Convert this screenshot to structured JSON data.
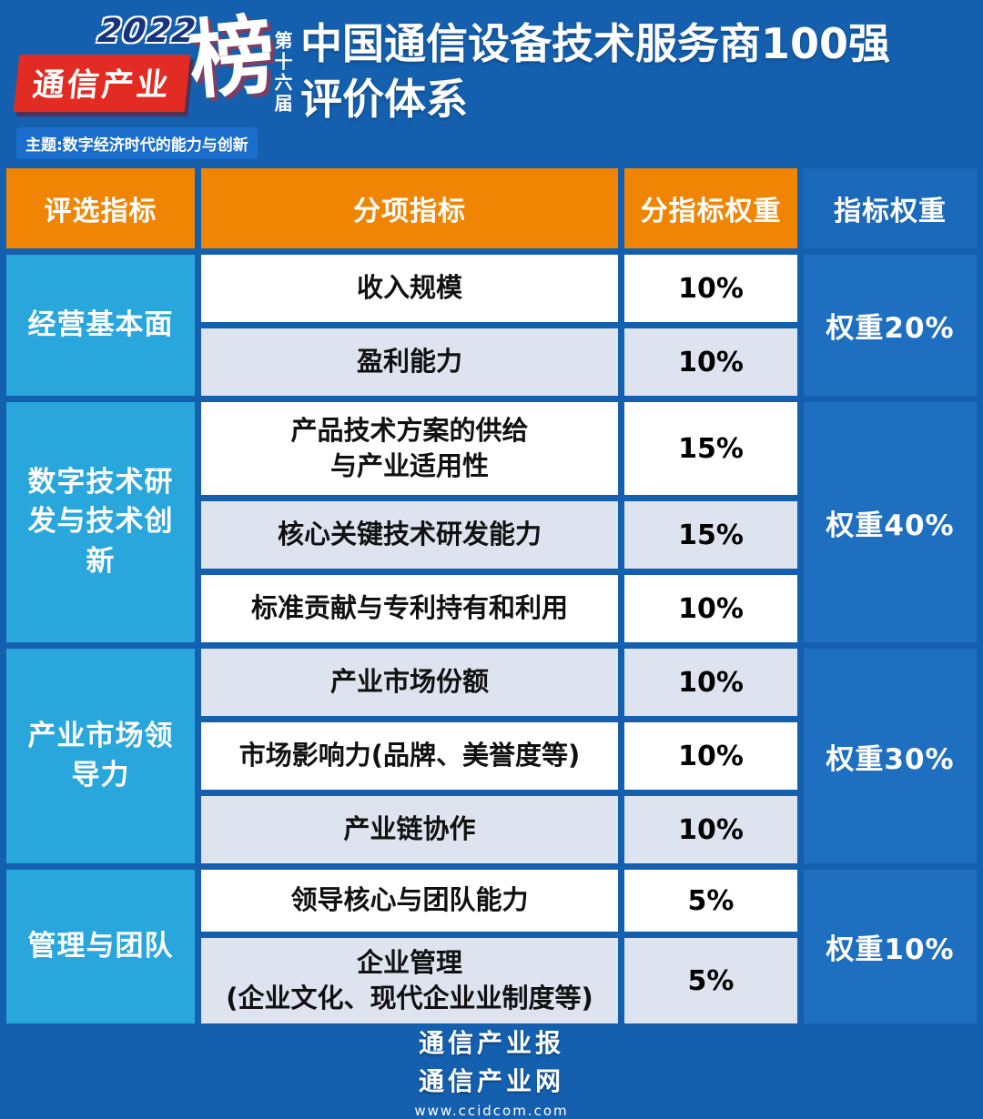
{
  "colors": {
    "page_bg": "#1460af",
    "header_orange": "#ef8502",
    "category_cyan": "#29a7dd",
    "row_alt_lavender": "#dde4f0",
    "weight_cell_blue": "#1e6fc0",
    "logo_red": "#e22b22"
  },
  "header": {
    "logo": {
      "year": "2022",
      "brand": "通信产业",
      "bang": "榜",
      "edition": "第十六届",
      "theme": "主题:数字经济时代的能力与创新"
    },
    "title_line1": "中国通信设备技术服务商100强",
    "title_line2": "评价体系"
  },
  "table": {
    "headers": [
      "评选指标",
      "分项指标",
      "分指标权重",
      "指标权重"
    ],
    "groups": [
      {
        "category": "经营基本面",
        "weight": "权重20%",
        "rows": [
          {
            "indicator": "收入规模",
            "weight": "10%"
          },
          {
            "indicator": "盈利能力",
            "weight": "10%"
          }
        ]
      },
      {
        "category": "数字技术研发与技术创新",
        "weight": "权重40%",
        "rows": [
          {
            "indicator": "产品技术方案的供给\n与产业适用性",
            "weight": "15%"
          },
          {
            "indicator": "核心关键技术研发能力",
            "weight": "15%"
          },
          {
            "indicator": "标准贡献与专利持有和利用",
            "weight": "10%"
          }
        ]
      },
      {
        "category": "产业市场领导力",
        "weight": "权重30%",
        "rows": [
          {
            "indicator": "产业市场份额",
            "weight": "10%"
          },
          {
            "indicator": "市场影响力(品牌、美誉度等)",
            "weight": "10%"
          },
          {
            "indicator": "产业链协作",
            "weight": "10%"
          }
        ]
      },
      {
        "category": "管理与团队",
        "weight": "权重10%",
        "rows": [
          {
            "indicator": "领导核心与团队能力",
            "weight": "5%"
          },
          {
            "indicator": "企业管理\n(企业文化、现代企业业制度等)",
            "weight": "5%"
          }
        ]
      }
    ]
  },
  "footer": {
    "line1": "通信产业报",
    "line2": "通信产业网",
    "url": "www.ccidcom.com"
  },
  "chart_data": {
    "type": "table",
    "title": "中国通信设备技术服务商100强评价体系",
    "columns": [
      "评选指标",
      "分项指标",
      "分指标权重",
      "指标权重"
    ],
    "rows": [
      [
        "经营基本面",
        "收入规模",
        "10%",
        "权重20%"
      ],
      [
        "经营基本面",
        "盈利能力",
        "10%",
        "权重20%"
      ],
      [
        "数字技术研发与技术创新",
        "产品技术方案的供给与产业适用性",
        "15%",
        "权重40%"
      ],
      [
        "数字技术研发与技术创新",
        "核心关键技术研发能力",
        "15%",
        "权重40%"
      ],
      [
        "数字技术研发与技术创新",
        "标准贡献与专利持有和利用",
        "10%",
        "权重40%"
      ],
      [
        "产业市场领导力",
        "产业市场份额",
        "10%",
        "权重30%"
      ],
      [
        "产业市场领导力",
        "市场影响力(品牌、美誉度等)",
        "10%",
        "权重30%"
      ],
      [
        "产业市场领导力",
        "产业链协作",
        "10%",
        "权重30%"
      ],
      [
        "管理与团队",
        "领导核心与团队能力",
        "5%",
        "权重10%"
      ],
      [
        "管理与团队",
        "企业管理(企业文化、现代企业业制度等)",
        "5%",
        "权重10%"
      ]
    ]
  }
}
